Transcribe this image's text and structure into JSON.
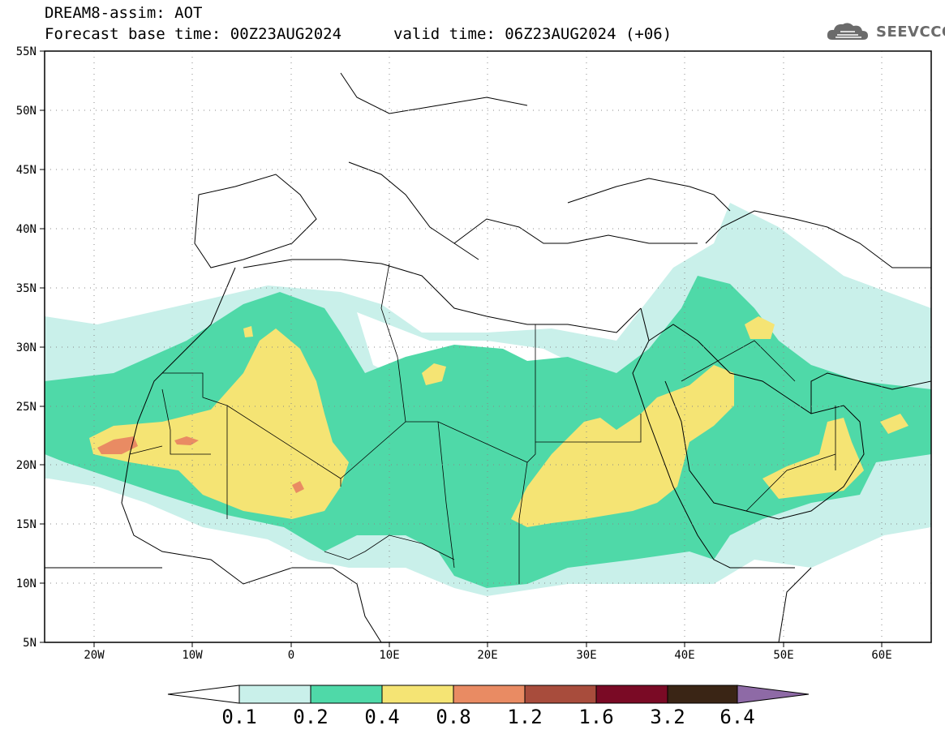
{
  "header": {
    "title": "DREAM8-assim: AOT",
    "base_time": "Forecast base time: 00Z23AUG2024",
    "valid_time": "valid time: 06Z23AUG2024 (+06)"
  },
  "logo": {
    "text": "SEEVCCC",
    "icon": "cloud-icon"
  },
  "map": {
    "lon_ticks": [
      "20W",
      "10W",
      "0",
      "10E",
      "20E",
      "30E",
      "40E",
      "50E",
      "60E"
    ],
    "lat_ticks": [
      "55N",
      "50N",
      "45N",
      "40N",
      "35N",
      "30N",
      "25N",
      "20N",
      "15N",
      "10N",
      "5N"
    ],
    "lon_range": [
      -25,
      65
    ],
    "lat_range": [
      5,
      55
    ],
    "grid": "dotted"
  },
  "colorbar": {
    "labels": [
      "0.1",
      "0.2",
      "0.4",
      "0.8",
      "1.2",
      "1.6",
      "3.2",
      "6.4"
    ],
    "colors": [
      "#ffffff",
      "#c9f0ea",
      "#4fd9a8",
      "#f5e474",
      "#e98b63",
      "#a84c3c",
      "#7a0a25",
      "#3a2515",
      "#8e6aa6"
    ]
  }
}
